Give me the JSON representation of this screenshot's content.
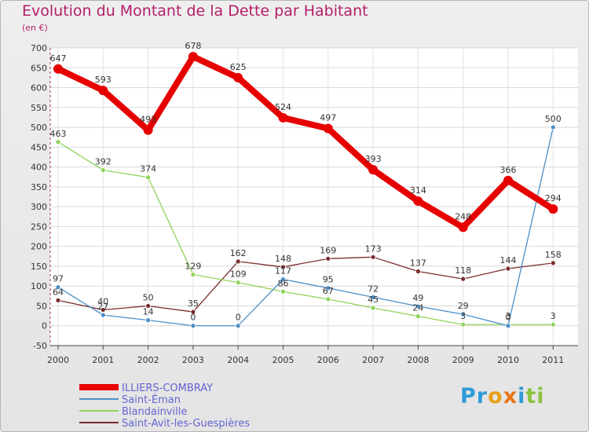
{
  "title": "Evolution du Montant de la Dette par Habitant",
  "subtitle": "(en €)",
  "logo_letters": [
    {
      "ch": "P",
      "color": "#2f9ad8"
    },
    {
      "ch": "r",
      "color": "#2f9ad8"
    },
    {
      "ch": "o",
      "color": "#e8a01a"
    },
    {
      "ch": "x",
      "color": "#e8741a"
    },
    {
      "ch": "i",
      "color": "#2f9ad8"
    },
    {
      "ch": "t",
      "color": "#8ac43f"
    },
    {
      "ch": "i",
      "color": "#8ac43f"
    }
  ],
  "chart_data": {
    "type": "line",
    "x": [
      "2000",
      "2001",
      "2002",
      "2003",
      "2004",
      "2005",
      "2006",
      "2007",
      "2008",
      "2009",
      "2010",
      "2011"
    ],
    "ylim": [
      -50,
      700
    ],
    "yticks": [
      -50,
      0,
      50,
      100,
      150,
      200,
      250,
      300,
      350,
      400,
      450,
      500,
      550,
      600,
      650,
      700
    ],
    "grid": true,
    "legend_position": "bottom-left",
    "series": [
      {
        "name": "ILLIERS-COMBRAY",
        "color": "#e60000",
        "width": 8,
        "marker": 6,
        "values": [
          647,
          593,
          493,
          678,
          625,
          524,
          497,
          393,
          314,
          248,
          366,
          294
        ],
        "labels": [
          "647",
          "593",
          "493",
          "678",
          "625",
          "524",
          "497",
          "393",
          "314",
          "248",
          "366",
          "294"
        ]
      },
      {
        "name": "Saint-Éman",
        "color": "#4a8fc8",
        "width": 1.3,
        "marker": 3,
        "values": [
          97,
          27,
          14,
          0,
          0,
          117,
          95,
          72,
          49,
          29,
          0,
          500
        ],
        "labels": [
          "97",
          "27",
          "14",
          "0",
          "0",
          "117",
          "95",
          "72",
          "49",
          "29",
          "0",
          "500"
        ]
      },
      {
        "name": "Blandainville",
        "color": "#8fd35a",
        "width": 1.3,
        "marker": 3,
        "values": [
          463,
          392,
          374,
          129,
          109,
          86,
          67,
          45,
          24,
          3,
          3,
          3
        ],
        "labels": [
          "463",
          "392",
          "374",
          "129",
          "109",
          "86",
          "67",
          "45",
          "24",
          "3",
          "3",
          "3"
        ]
      },
      {
        "name": "Saint-Avit-les-Guespières",
        "color": "#7a2c2c",
        "width": 1.3,
        "marker": 3,
        "values": [
          64,
          40,
          50,
          35,
          162,
          148,
          169,
          173,
          137,
          118,
          144,
          158
        ],
        "labels": [
          "64",
          "40",
          "50",
          "35",
          "162",
          "148",
          "169",
          "173",
          "137",
          "118",
          "144",
          "158"
        ]
      }
    ]
  }
}
